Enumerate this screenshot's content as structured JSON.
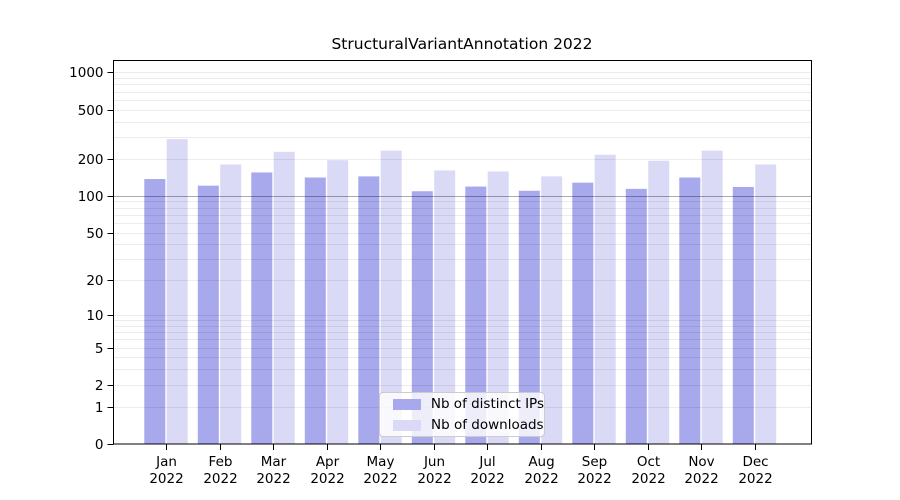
{
  "title": "StructuralVariantAnnotation 2022",
  "colors": {
    "ips_bar": "#a8a8ec",
    "downloads_bar": "#dadaf6",
    "minor_gridline": "rgba(0,0,0,0.075)",
    "emphasized_gridline": "rgba(0,0,0,0.33)",
    "axis": "#000000",
    "legend_border": "#cccccc",
    "legend_background": "rgba(255,255,255,0.8)"
  },
  "chart_data": {
    "type": "bar",
    "title": "StructuralVariantAnnotation 2022",
    "x_categories": [
      "Jan 2022",
      "Feb 2022",
      "Mar 2022",
      "Apr 2022",
      "May 2022",
      "Jun 2022",
      "Jul 2022",
      "Aug 2022",
      "Sep 2022",
      "Oct 2022",
      "Nov 2022",
      "Dec 2022"
    ],
    "series": [
      {
        "name": "Nb of distinct IPs",
        "color": "#a8a8ec",
        "values": [
          137,
          121,
          155,
          141,
          144,
          109,
          119,
          110,
          128,
          114,
          141,
          118
        ]
      },
      {
        "name": "Nb of downloads",
        "color": "#dadaf6",
        "values": [
          289,
          180,
          228,
          195,
          233,
          161,
          158,
          144,
          216,
          193,
          233,
          180
        ]
      }
    ],
    "y_scale": "log1p",
    "y_ticks": [
      0,
      1,
      2,
      5,
      10,
      20,
      50,
      100,
      200,
      500,
      1000
    ],
    "ylim": [
      0,
      1250
    ],
    "emphasized_gridline_value": 100,
    "grid": "on",
    "legend_position": "bottom-center",
    "xlabel": "",
    "ylabel": ""
  }
}
